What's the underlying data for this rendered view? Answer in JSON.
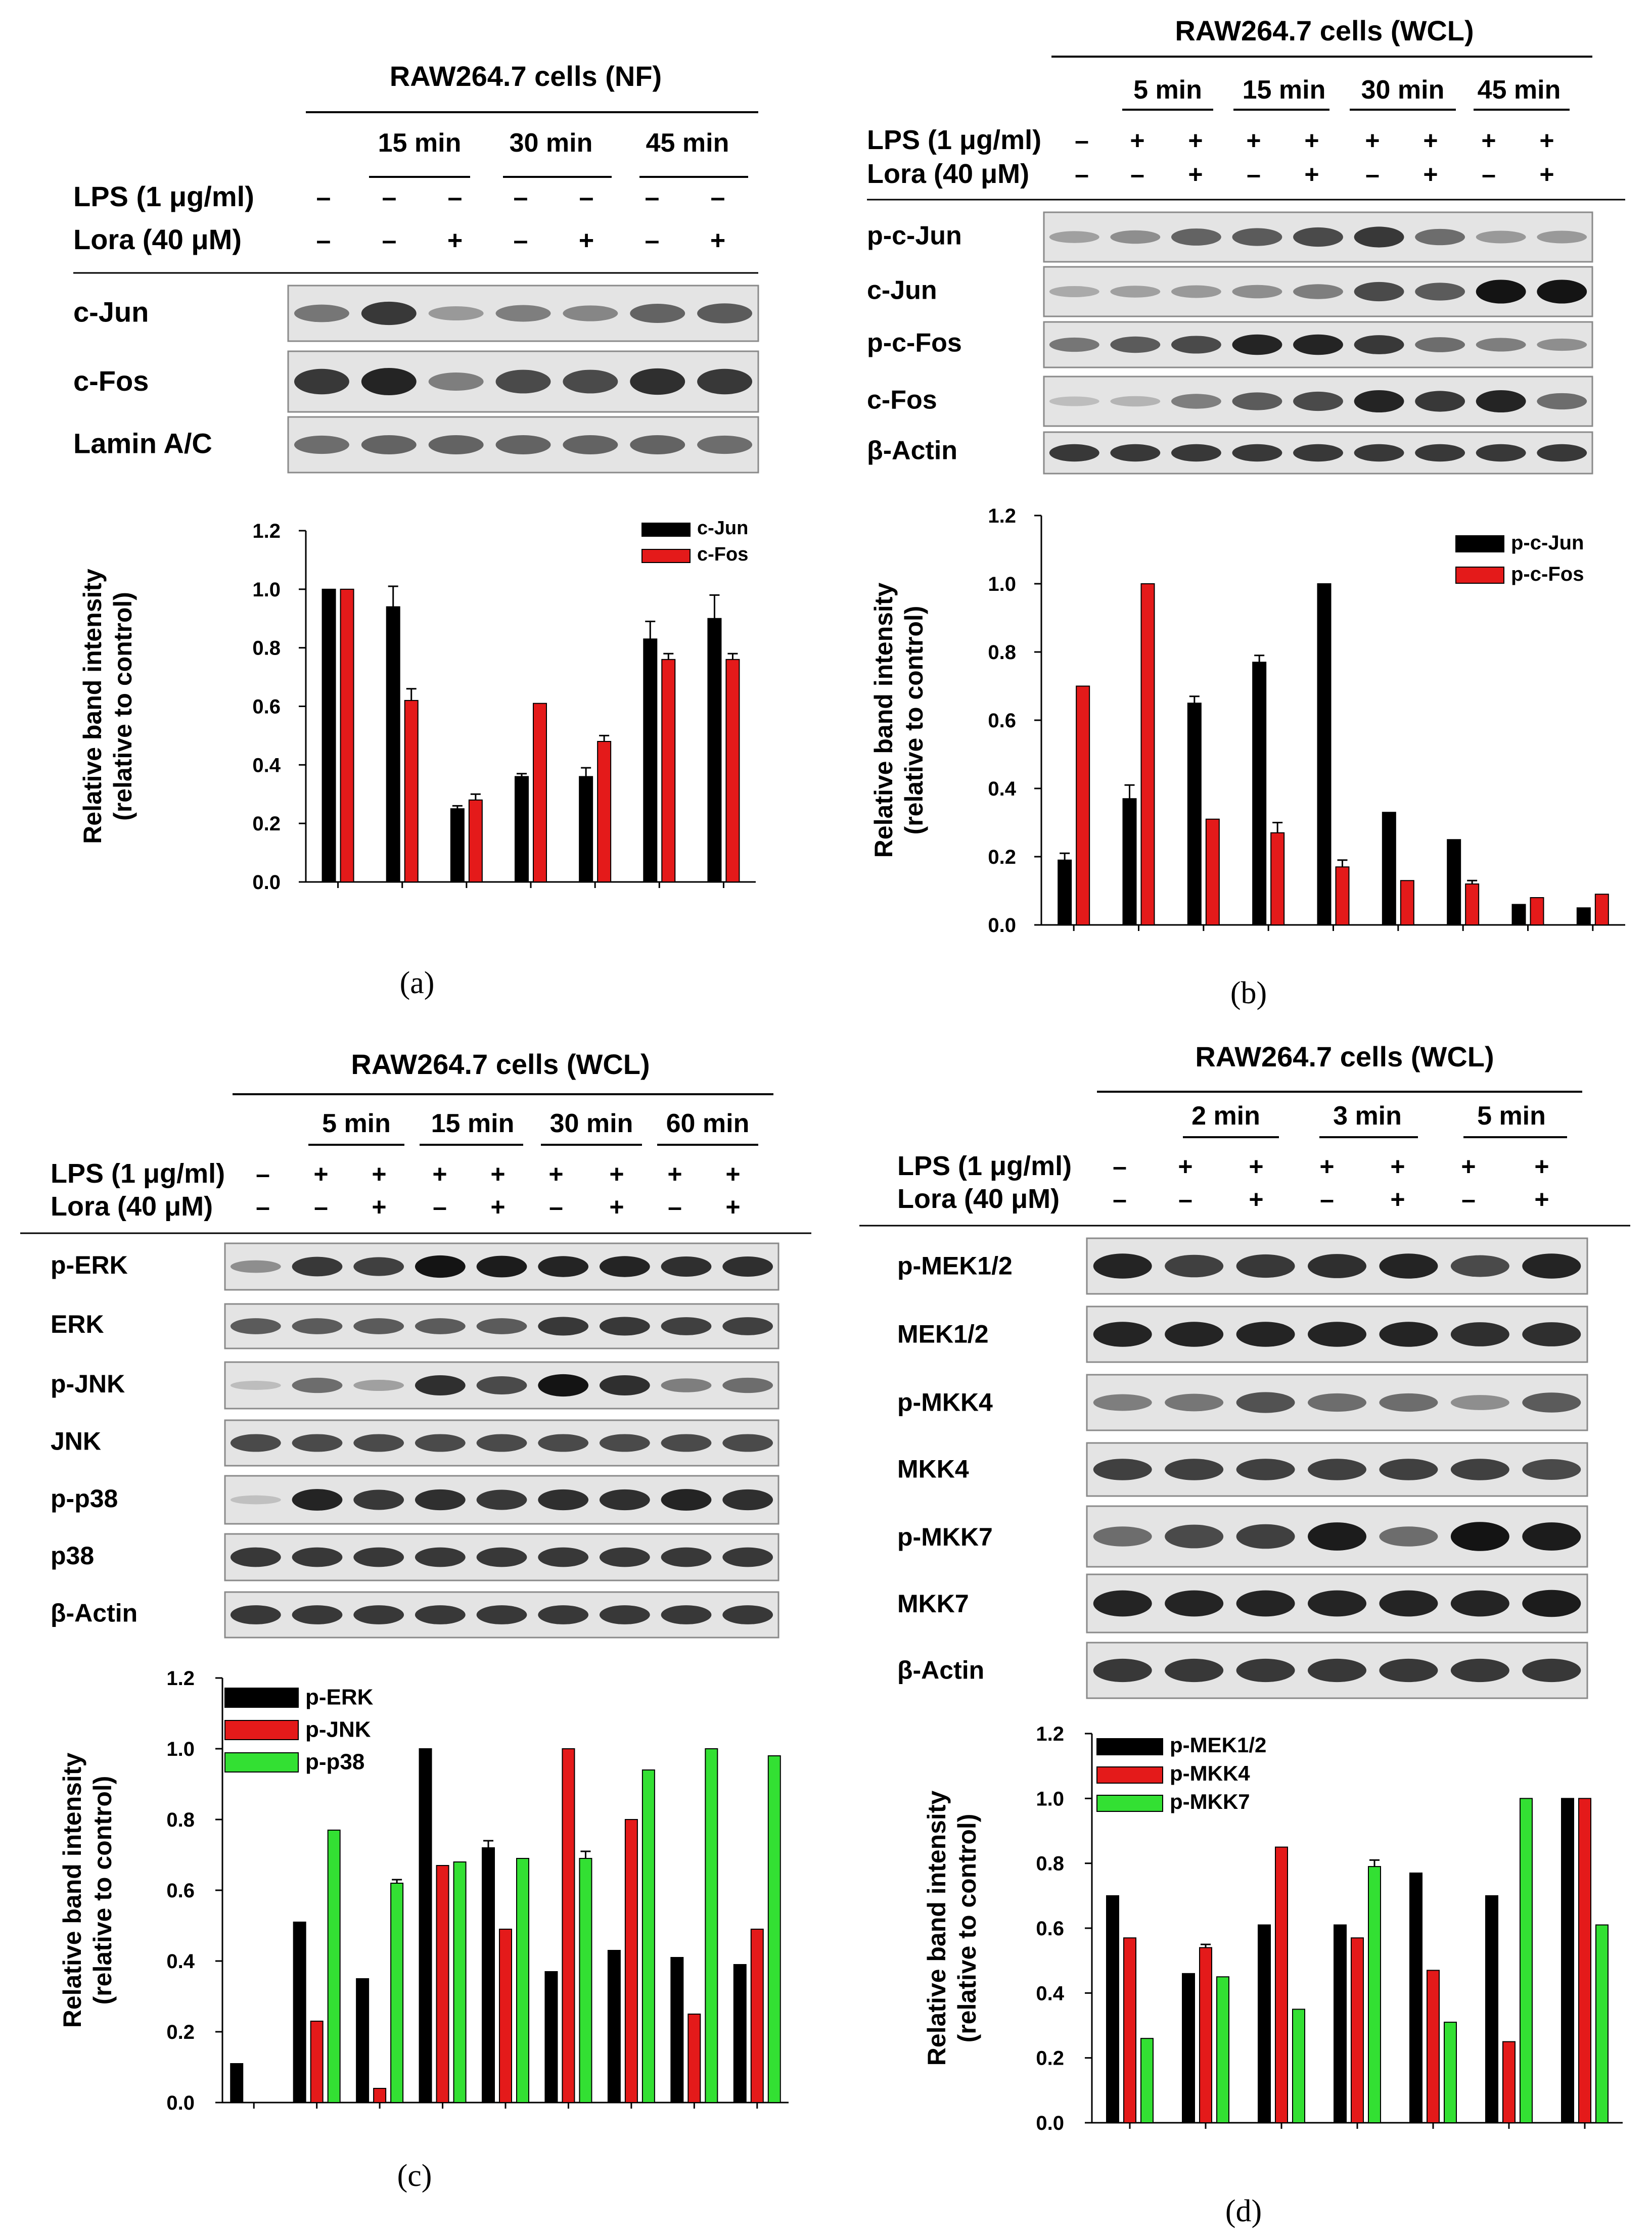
{
  "colors": {
    "black": "#000000",
    "red": "#e41a1a",
    "green": "#33e033",
    "outline": "#000000"
  },
  "panels": [
    {
      "id": "a",
      "label": "(a)",
      "header": {
        "title": "RAW264.7 cells (NF)",
        "time_groups": [
          "15 min",
          "30 min",
          "45 min"
        ],
        "lps_label": "LPS (1 μg/ml)",
        "lora_label": "Lora (40 μM)",
        "lps": [
          "–",
          "–",
          "–",
          "–",
          "–",
          "–",
          "–"
        ],
        "lora": [
          "–",
          "–",
          "+",
          "–",
          "+",
          "–",
          "+"
        ]
      },
      "blots": [
        "c-Jun",
        "c-Fos",
        "Lamin A/C"
      ]
    },
    {
      "id": "b",
      "label": "(b)",
      "header": {
        "title": "RAW264.7 cells (WCL)",
        "time_groups": [
          "5 min",
          "15 min",
          "30 min",
          "45 min"
        ],
        "lps_label": "LPS (1 μg/ml)",
        "lora_label": "Lora (40 μM)",
        "lps": [
          "–",
          "+",
          "+",
          "+",
          "+",
          "+",
          "+",
          "+",
          "+"
        ],
        "lora": [
          "–",
          "–",
          "+",
          "–",
          "+",
          "–",
          "+",
          "–",
          "+"
        ]
      },
      "blots": [
        "p-c-Jun",
        "c-Jun",
        "p-c-Fos",
        "c-Fos",
        "β-Actin"
      ]
    },
    {
      "id": "c",
      "label": "(c)",
      "header": {
        "title": "RAW264.7 cells (WCL)",
        "time_groups": [
          "5 min",
          "15 min",
          "30 min",
          "60 min"
        ],
        "lps_label": "LPS (1 μg/ml)",
        "lora_label": "Lora (40 μM)",
        "lps": [
          "–",
          "+",
          "+",
          "+",
          "+",
          "+",
          "+",
          "+",
          "+"
        ],
        "lora": [
          "–",
          "–",
          "+",
          "–",
          "+",
          "–",
          "+",
          "–",
          "+"
        ]
      },
      "blots": [
        "p-ERK",
        "ERK",
        "p-JNK",
        "JNK",
        "p-p38",
        "p38",
        "β-Actin"
      ]
    },
    {
      "id": "d",
      "label": "(d)",
      "header": {
        "title": "RAW264.7 cells (WCL)",
        "time_groups": [
          "2 min",
          "3 min",
          "5 min"
        ],
        "lps_label": "LPS (1 μg/ml)",
        "lora_label": "Lora (40 μM)",
        "lps": [
          "–",
          "+",
          "+",
          "+",
          "+",
          "+",
          "+"
        ],
        "lora": [
          "–",
          "–",
          "+",
          "–",
          "+",
          "–",
          "+"
        ]
      },
      "blots": [
        "p-MEK1/2",
        "MEK1/2",
        "p-MKK4",
        "MKK4",
        "p-MKK7",
        "MKK7",
        "β-Actin"
      ]
    }
  ],
  "chart_data": [
    {
      "panel": "a",
      "type": "bar",
      "ylabel": "Relative band intensity\n(relative to control)",
      "ylim": [
        0,
        1.2
      ],
      "yticks": [
        "0.0",
        "0.2",
        "0.4",
        "0.6",
        "0.8",
        "1.0",
        "1.2"
      ],
      "legend": "top-right",
      "grid": false,
      "series": [
        {
          "name": "c-Jun",
          "color": "black",
          "values": [
            1.0,
            0.94,
            0.25,
            0.36,
            0.36,
            0.83,
            0.9
          ],
          "errors": [
            0,
            0.07,
            0.01,
            0.01,
            0.03,
            0.06,
            0.08
          ]
        },
        {
          "name": "c-Fos",
          "color": "red",
          "values": [
            1.0,
            0.62,
            0.28,
            0.61,
            0.48,
            0.76,
            0.76
          ],
          "errors": [
            0,
            0.04,
            0.02,
            0,
            0.02,
            0.02,
            0.02
          ]
        }
      ]
    },
    {
      "panel": "b",
      "type": "bar",
      "ylabel": "Relative band intensity\n(relative to control)",
      "ylim": [
        0,
        1.2
      ],
      "yticks": [
        "0.0",
        "0.2",
        "0.4",
        "0.6",
        "0.8",
        "1.0",
        "1.2"
      ],
      "legend": "top-right",
      "grid": false,
      "series": [
        {
          "name": "p-c-Jun",
          "color": "black",
          "values": [
            0.19,
            0.37,
            0.65,
            0.77,
            1.0,
            0.33,
            0.25,
            0.06,
            0.05
          ],
          "errors": [
            0.02,
            0.04,
            0.02,
            0.02,
            0,
            0,
            0,
            0,
            0
          ]
        },
        {
          "name": "p-c-Fos",
          "color": "red",
          "values": [
            0.7,
            1.0,
            0.31,
            0.27,
            0.17,
            0.13,
            0.12,
            0.08,
            0.09
          ],
          "errors": [
            0,
            0,
            0,
            0.03,
            0.02,
            0,
            0.01,
            0,
            0
          ]
        }
      ]
    },
    {
      "panel": "c",
      "type": "bar",
      "ylabel": "Relative band intensity\n(relative to control)",
      "ylim": [
        0,
        1.2
      ],
      "yticks": [
        "0.0",
        "0.2",
        "0.4",
        "0.6",
        "0.8",
        "1.0",
        "1.2"
      ],
      "legend": "top-left",
      "grid": false,
      "series": [
        {
          "name": "p-ERK",
          "color": "black",
          "values": [
            0.11,
            0.51,
            0.35,
            1.0,
            0.72,
            0.37,
            0.43,
            0.41,
            0.39
          ],
          "errors": [
            0,
            0,
            0,
            0,
            0.02,
            0,
            0,
            0,
            0
          ]
        },
        {
          "name": "p-JNK",
          "color": "red",
          "values": [
            0,
            0.23,
            0.04,
            0.67,
            0.49,
            1.0,
            0.8,
            0.25,
            0.49
          ],
          "errors": [
            0,
            0,
            0,
            0,
            0,
            0,
            0,
            0,
            0
          ]
        },
        {
          "name": "p-p38",
          "color": "green",
          "values": [
            0,
            0.77,
            0.62,
            0.68,
            0.69,
            0.69,
            0.94,
            1.0,
            0.98
          ],
          "errors": [
            0,
            0,
            0.01,
            0,
            0,
            0.02,
            0,
            0,
            0
          ]
        }
      ]
    },
    {
      "panel": "d",
      "type": "bar",
      "ylabel": "Relative band intensity\n(relative to control)",
      "ylim": [
        0,
        1.2
      ],
      "yticks": [
        "0.0",
        "0.2",
        "0.4",
        "0.6",
        "0.8",
        "1.0",
        "1.2"
      ],
      "legend": "top-left",
      "grid": false,
      "series": [
        {
          "name": "p-MEK1/2",
          "color": "black",
          "values": [
            0.7,
            0.46,
            0.61,
            0.61,
            0.77,
            0.7,
            1.0
          ],
          "errors": [
            0,
            0,
            0,
            0,
            0,
            0,
            0
          ]
        },
        {
          "name": "p-MKK4",
          "color": "red",
          "values": [
            0.57,
            0.54,
            0.85,
            0.57,
            0.47,
            0.25,
            1.0
          ],
          "errors": [
            0,
            0.01,
            0,
            0,
            0,
            0,
            0
          ]
        },
        {
          "name": "p-MKK7",
          "color": "green",
          "values": [
            0.26,
            0.45,
            0.35,
            0.79,
            0.31,
            1.0,
            0.61
          ],
          "errors": [
            0,
            0,
            0,
            0.02,
            0,
            0,
            0
          ]
        }
      ]
    }
  ],
  "blot_bands": {
    "a": {
      "c-Jun": [
        0.45,
        0.8,
        0.25,
        0.4,
        0.35,
        0.55,
        0.6
      ],
      "c-Fos": [
        0.8,
        0.9,
        0.4,
        0.7,
        0.7,
        0.85,
        0.8
      ],
      "Lamin A/C": [
        0.5,
        0.55,
        0.55,
        0.55,
        0.55,
        0.55,
        0.5
      ]
    },
    "b": {
      "p-c-Jun": [
        0.2,
        0.3,
        0.55,
        0.6,
        0.7,
        0.8,
        0.5,
        0.25,
        0.25
      ],
      "c-Jun": [
        0.15,
        0.2,
        0.25,
        0.3,
        0.4,
        0.7,
        0.6,
        1.0,
        1.0
      ],
      "p-c-Fos": [
        0.45,
        0.6,
        0.7,
        0.9,
        0.9,
        0.8,
        0.5,
        0.4,
        0.3
      ],
      "c-Fos": [
        0.05,
        0.1,
        0.4,
        0.6,
        0.7,
        0.9,
        0.8,
        0.9,
        0.5
      ],
      "β-Actin": [
        0.8,
        0.8,
        0.8,
        0.8,
        0.8,
        0.8,
        0.8,
        0.8,
        0.8
      ]
    },
    "c": {
      "p-ERK": [
        0.3,
        0.8,
        0.75,
        1.0,
        0.95,
        0.9,
        0.9,
        0.85,
        0.85
      ],
      "ERK": [
        0.6,
        0.6,
        0.6,
        0.6,
        0.6,
        0.8,
        0.8,
        0.75,
        0.75
      ],
      "p-JNK": [
        0.05,
        0.5,
        0.2,
        0.85,
        0.7,
        1.0,
        0.85,
        0.4,
        0.5
      ],
      "JNK": [
        0.7,
        0.7,
        0.7,
        0.7,
        0.7,
        0.7,
        0.7,
        0.7,
        0.7
      ],
      "p-p38": [
        0.02,
        0.9,
        0.8,
        0.85,
        0.8,
        0.85,
        0.85,
        0.9,
        0.85
      ],
      "p38": [
        0.8,
        0.8,
        0.8,
        0.8,
        0.8,
        0.8,
        0.8,
        0.8,
        0.8
      ],
      "β-Actin": [
        0.8,
        0.8,
        0.8,
        0.8,
        0.8,
        0.8,
        0.8,
        0.8,
        0.8
      ]
    },
    "d": {
      "p-MEK1/2": [
        0.9,
        0.75,
        0.8,
        0.85,
        0.9,
        0.7,
        0.9
      ],
      "MEK1/2": [
        0.9,
        0.9,
        0.9,
        0.9,
        0.9,
        0.85,
        0.85
      ],
      "p-MKK4": [
        0.4,
        0.45,
        0.65,
        0.5,
        0.5,
        0.3,
        0.6
      ],
      "MKK4": [
        0.75,
        0.75,
        0.75,
        0.75,
        0.75,
        0.75,
        0.7
      ],
      "p-MKK7": [
        0.5,
        0.7,
        0.75,
        0.95,
        0.5,
        1.0,
        0.95
      ],
      "MKK7": [
        0.9,
        0.9,
        0.9,
        0.9,
        0.9,
        0.9,
        0.95
      ],
      "β-Actin": [
        0.8,
        0.8,
        0.8,
        0.8,
        0.8,
        0.8,
        0.8
      ]
    }
  }
}
